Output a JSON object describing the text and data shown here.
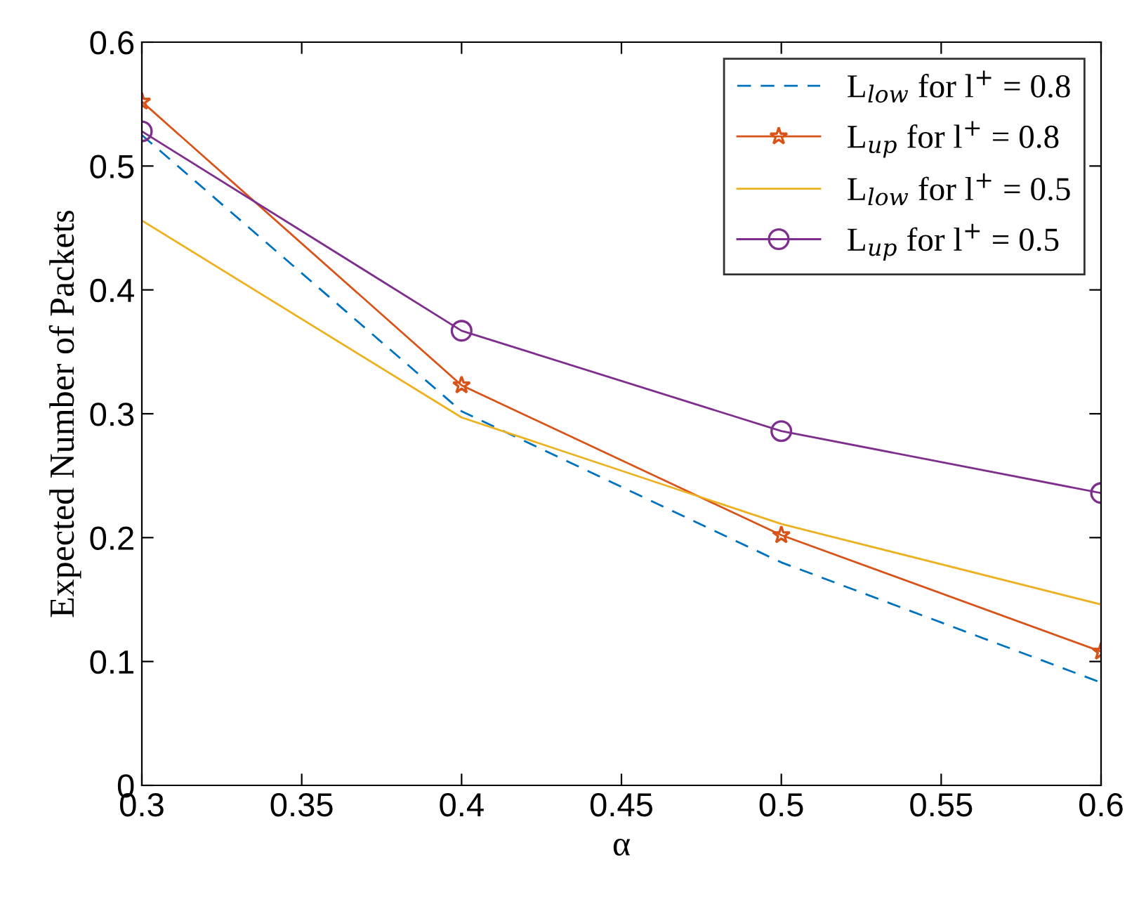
{
  "chart_data": {
    "type": "line",
    "xlabel": "α",
    "ylabel": "Expected Number of Packets",
    "x": [
      0.3,
      0.4,
      0.5,
      0.6
    ],
    "series": [
      {
        "name": "L$_{low}$ for l$^{+}$ = 0.8",
        "color": "#0072bd",
        "line_style": "dashed",
        "marker": "none",
        "values": [
          0.525,
          0.302,
          0.18,
          0.083
        ]
      },
      {
        "name": "L$_{up}$ for l$^{+}$ = 0.8",
        "color": "#d95319",
        "line_style": "solid",
        "marker": "star",
        "values": [
          0.552,
          0.323,
          0.202,
          0.108
        ]
      },
      {
        "name": "L$_{low}$ for l$^{+}$ = 0.5",
        "color": "#edb120",
        "line_style": "solid",
        "marker": "none",
        "values": [
          0.456,
          0.297,
          0.211,
          0.146
        ]
      },
      {
        "name": "L$_{up}$ for l$^{+}$ = 0.5",
        "color": "#7e2f8e",
        "line_style": "solid",
        "marker": "circle",
        "values": [
          0.528,
          0.367,
          0.286,
          0.236
        ]
      }
    ],
    "xlim": [
      0.3,
      0.6
    ],
    "xticks": [
      0.3,
      0.35,
      0.4,
      0.45,
      0.5,
      0.55,
      0.6
    ],
    "ylim": [
      0,
      0.6
    ],
    "yticks": [
      0,
      0.1,
      0.2,
      0.3,
      0.4,
      0.5,
      0.6
    ],
    "grid": false,
    "legend": "top right"
  }
}
